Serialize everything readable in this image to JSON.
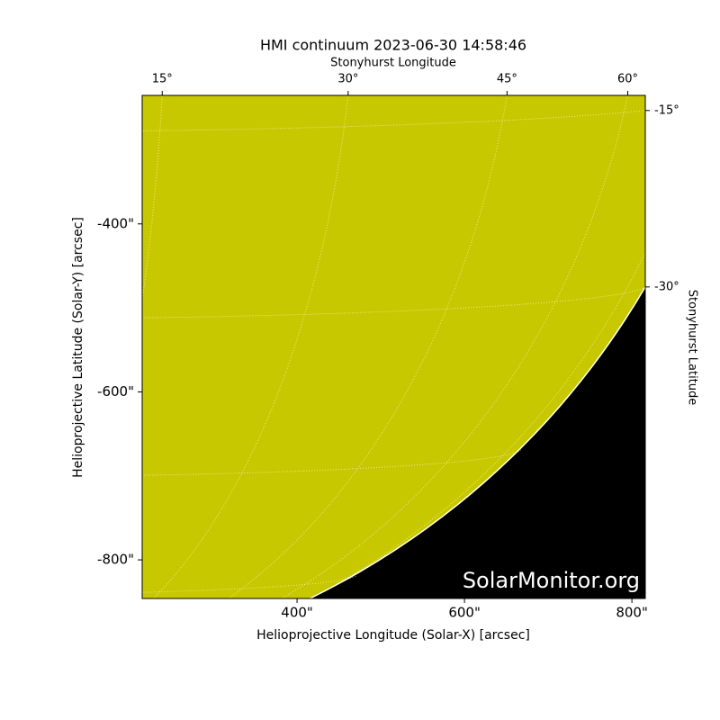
{
  "chart_data": {
    "type": "image",
    "title": "HMI continuum 2023-06-30 14:58:46",
    "xlabel": "Helioprojective Longitude (Solar-X) [arcsec]",
    "ylabel": "Helioprojective Latitude (Solar-Y) [arcsec]",
    "x2label": "Stonyhurst Longitude",
    "y2label": "Stonyhurst Latitude",
    "watermark": "SolarMonitor.org",
    "xlim": [
      215,
      816
    ],
    "ylim": [
      -846,
      -247
    ],
    "xticks": [
      {
        "value": 400,
        "label": "400\""
      },
      {
        "value": 600,
        "label": "600\""
      },
      {
        "value": 800,
        "label": "800\""
      }
    ],
    "yticks": [
      {
        "value": -400,
        "label": "-400\""
      },
      {
        "value": -600,
        "label": "-600\""
      },
      {
        "value": -800,
        "label": "-800\""
      }
    ],
    "x2ticks": [
      {
        "value": 15,
        "label": "15°"
      },
      {
        "value": 30,
        "label": "30°"
      },
      {
        "value": 45,
        "label": "45°"
      },
      {
        "value": 60,
        "label": "60°"
      }
    ],
    "y2ticks": [
      {
        "value": -15,
        "label": "-15°"
      },
      {
        "value": -30,
        "label": "-30°"
      }
    ],
    "disk_color": "#c8c800",
    "grid": true
  }
}
